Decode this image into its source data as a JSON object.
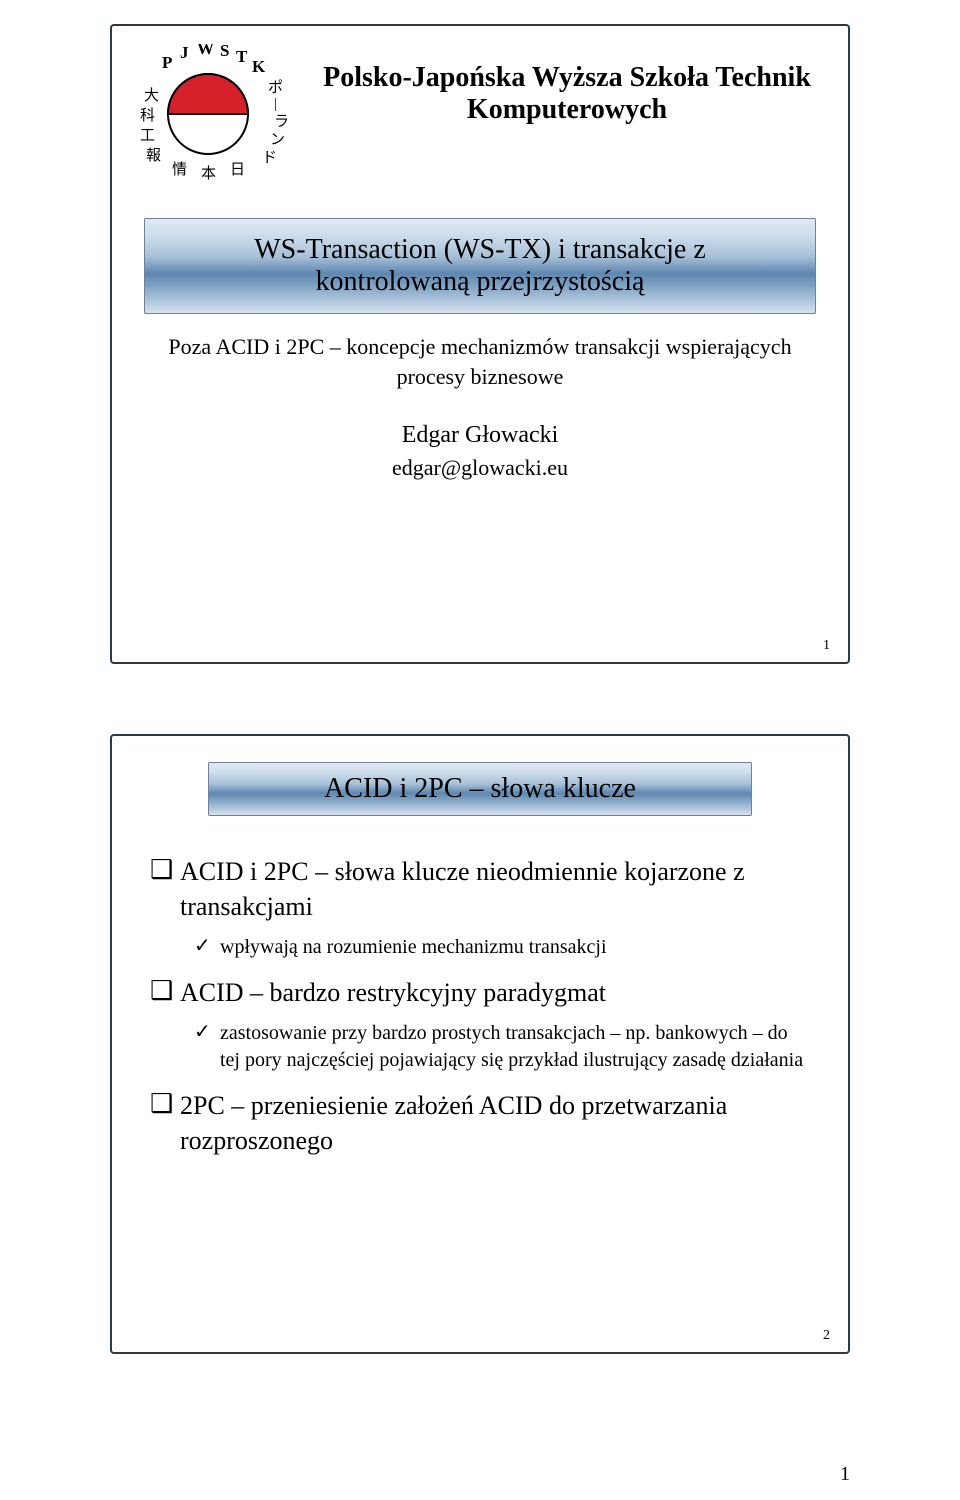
{
  "page": {
    "bottom_number": "1"
  },
  "slide1": {
    "inner_number": "1",
    "institution_line1": "Polsko-Japońska Wyższa Szkoła Technik",
    "institution_line2": "Komputerowych",
    "logo": {
      "top_arc_text": "P J W S T K",
      "left_chars": [
        "大",
        "科",
        "工",
        "報"
      ],
      "right_chars": [
        "ポ",
        "|",
        "ラ",
        "ン",
        "ド"
      ],
      "bottom_chars": [
        "情",
        "本",
        "日"
      ],
      "disc_top_color": "#d6212a",
      "disc_bottom_color": "#ffffff",
      "disc_border_color": "#000000"
    },
    "title_line1": "WS-Transaction (WS-TX) i transakcje z",
    "title_line2": "kontrolowaną przejrzystością",
    "subtitle": "Poza ACID i 2PC – koncepcje mechanizmów transakcji wspierających procesy biznesowe",
    "author_name": "Edgar Głowacki",
    "author_email": "edgar@glowacki.eu"
  },
  "slide2": {
    "inner_number": "2",
    "title": "ACID i 2PC – słowa klucze",
    "items": [
      {
        "text": "ACID i 2PC – słowa klucze nieodmiennie kojarzone z transakcjami",
        "children": [
          {
            "text": "wpływają na rozumienie mechanizmu transakcji"
          }
        ]
      },
      {
        "text": "ACID – bardzo restrykcyjny paradygmat",
        "children": [
          {
            "text": "zastosowanie przy bardzo prostych transakcjach – np. bankowych – do tej pory najczęściej pojawiający się przykład ilustrujący zasadę działania"
          }
        ]
      },
      {
        "text": "2PC – przeniesienie założeń ACID do przetwarzania rozproszonego",
        "children": []
      }
    ]
  },
  "style": {
    "slide_border_color": "#2b3a4a",
    "title_bar_gradient_top": "#e0eaf4",
    "title_bar_gradient_bottom": "#d6e2ef",
    "title_bar_border": "#6e809a",
    "font_body": "Times New Roman",
    "bullet_l1_glyph": "❑",
    "bullet_l2_glyph": "✓"
  }
}
